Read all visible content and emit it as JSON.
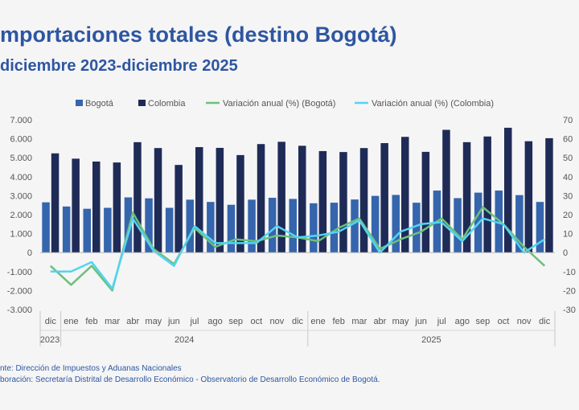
{
  "title": "mportaciones totales (destino Bogotá)",
  "subtitle": "diciembre 2023-diciembre 2025",
  "source_line": "nte: Dirección de Impuestos y Aduanas Nacionales",
  "elaboration_line": "boración: Secretaría Distrital de Desarrollo Económico - Observatorio de Desarrollo Económico de Bogotá.",
  "chart_data": {
    "type": "bar",
    "categories": [
      "dic",
      "ene",
      "feb",
      "mar",
      "abr",
      "may",
      "jun",
      "jul",
      "ago",
      "sep",
      "oct",
      "nov",
      "dic",
      "ene",
      "feb",
      "mar",
      "abr",
      "may",
      "jun",
      "jul",
      "ago",
      "sep",
      "oct",
      "nov",
      "dic"
    ],
    "year_labels": [
      {
        "label": "2023",
        "start": 0,
        "end": 0
      },
      {
        "label": "2024",
        "start": 1,
        "end": 12
      },
      {
        "label": "2025",
        "start": 13,
        "end": 24
      }
    ],
    "left_axis": {
      "min": -3000,
      "max": 7000,
      "step": 1000,
      "tick_labels": [
        "-3.000",
        "-2.000",
        "-1.000",
        "0",
        "1.000",
        "2.000",
        "3.000",
        "4.000",
        "5.000",
        "6.000",
        "7.000"
      ]
    },
    "right_axis": {
      "min": -30,
      "max": 70,
      "step": 10,
      "tick_labels": [
        "-30",
        "-20",
        "-10",
        "0",
        "10",
        "20",
        "30",
        "40",
        "50",
        "60",
        "70"
      ]
    },
    "series": [
      {
        "name": "Bogotá",
        "type": "bar",
        "axis": "left",
        "color": "#3565ad",
        "values": [
          2650,
          2430,
          2310,
          2360,
          2910,
          2860,
          2360,
          2790,
          2670,
          2520,
          2790,
          2890,
          2830,
          2600,
          2630,
          2800,
          2990,
          3040,
          2630,
          3270,
          2870,
          3160,
          3270,
          3030,
          2670
        ]
      },
      {
        "name": "Colombia",
        "type": "bar",
        "axis": "left",
        "color": "#1f2b57",
        "values": [
          5230,
          4950,
          4800,
          4750,
          5820,
          5510,
          4620,
          5560,
          5520,
          5140,
          5720,
          5840,
          5630,
          5350,
          5300,
          5510,
          5770,
          6100,
          5310,
          6470,
          5820,
          6120,
          6580,
          5870,
          6030
        ]
      },
      {
        "name": "Variación anual (%) (Bogotá)",
        "type": "line",
        "axis": "right",
        "color": "#6cc07c",
        "values": [
          -7,
          -17,
          -7,
          -20,
          21,
          2,
          -6,
          13,
          3,
          7,
          6,
          9,
          8,
          6,
          13,
          18,
          2,
          7,
          11,
          18,
          7,
          24,
          15,
          3,
          -7
        ]
      },
      {
        "name": "Variación anual (%) (Colombia)",
        "type": "line",
        "axis": "right",
        "color": "#52d4f2",
        "values": [
          -10,
          -10,
          -5,
          -19,
          18,
          1,
          -7,
          14,
          5,
          5,
          5,
          14,
          8,
          9,
          11,
          17,
          0,
          11,
          15,
          16,
          6,
          18,
          15,
          0,
          7
        ]
      }
    ],
    "legend_position": "top"
  }
}
